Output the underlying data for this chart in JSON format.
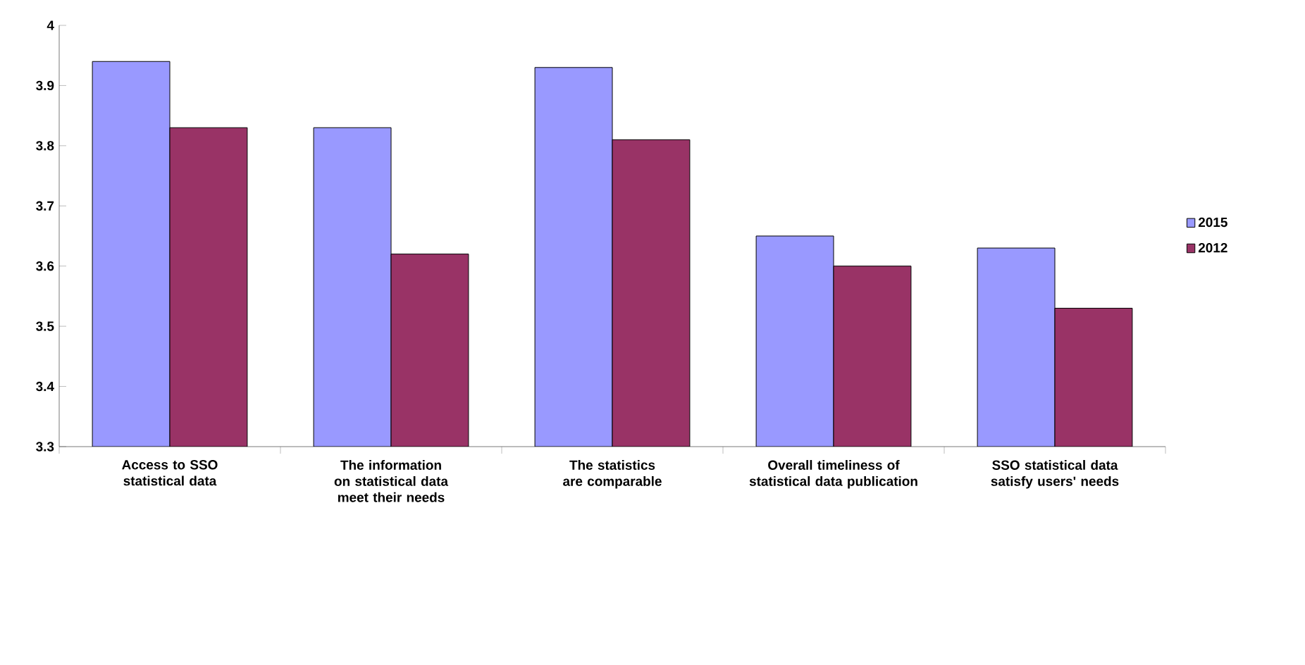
{
  "chart_data": {
    "type": "bar",
    "categories": [
      "Access to SSO statistical data",
      "The information on statistical data meet their needs",
      "The statistics are comparable",
      "Overall timeliness of statistical data publication",
      "SSO statistical data satisfy users' needs"
    ],
    "series": [
      {
        "name": "2015",
        "color": "#9999ff",
        "values": [
          3.94,
          3.83,
          3.93,
          3.65,
          3.63
        ]
      },
      {
        "name": "2012",
        "color": "#993366",
        "values": [
          3.83,
          3.62,
          3.81,
          3.6,
          3.53
        ]
      }
    ],
    "ylim": [
      3.3,
      4
    ],
    "yticks": [
      3.3,
      3.4,
      3.5,
      3.6,
      3.7,
      3.8,
      3.9,
      4
    ],
    "grid": false,
    "legend": "right"
  }
}
